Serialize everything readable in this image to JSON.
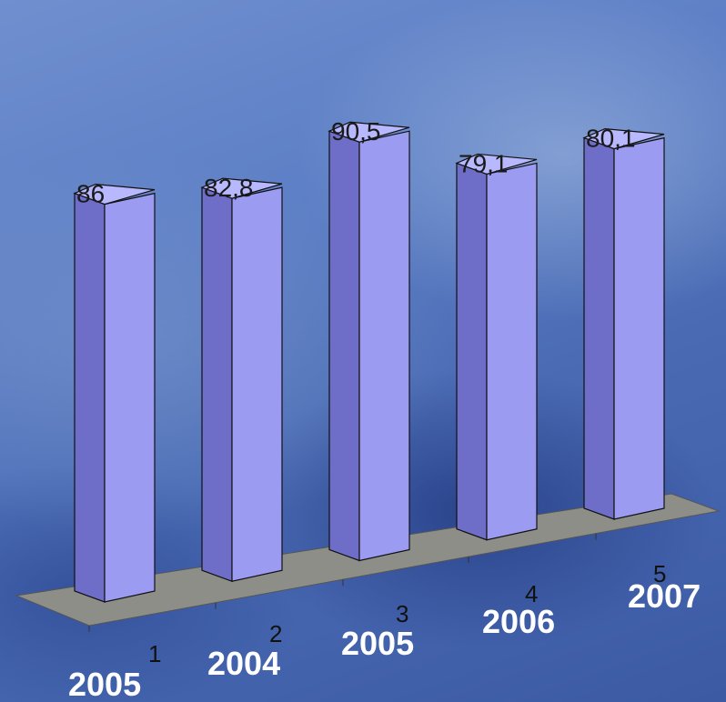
{
  "chart_data": {
    "type": "bar",
    "categories": [
      "1",
      "2",
      "3",
      "4",
      "5"
    ],
    "category_labels": [
      "2005",
      "2004",
      "2005",
      "2006",
      "2007"
    ],
    "values": [
      86,
      82.8,
      90.5,
      79.1,
      80.1
    ],
    "value_labels": [
      "86",
      "82,8",
      "90,5",
      "79,1",
      "80,1"
    ],
    "title": "",
    "xlabel": "",
    "ylabel": "",
    "ylim": [
      0,
      100
    ],
    "grid": false,
    "style": "3d-column",
    "colors": {
      "bar_front": "#9b9bf2",
      "bar_side": "#6e6ec9",
      "bar_top": "#b8b8ff",
      "floor": "#8e8e88"
    }
  }
}
